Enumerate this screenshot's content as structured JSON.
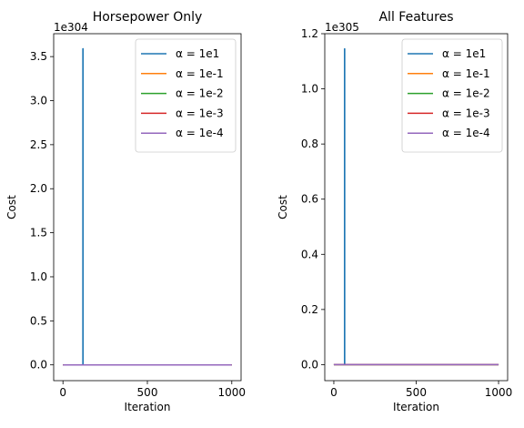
{
  "chart_data": [
    {
      "type": "line",
      "title": "Horsepower Only",
      "xlabel": "Iteration",
      "ylabel": "Cost",
      "offset_text": "1e304",
      "xlim": [
        -55,
        1055
      ],
      "ylim": [
        -0.179,
        3.76
      ],
      "xticks": [
        0,
        500,
        1000
      ],
      "yticks": [
        0.0,
        0.5,
        1.0,
        1.5,
        2.0,
        2.5,
        3.0,
        3.5
      ],
      "ytick_labels": [
        "0.0",
        "0.5",
        "1.0",
        "1.5",
        "2.0",
        "2.5",
        "3.0",
        "3.5"
      ],
      "legend_position": "top-right",
      "series": [
        {
          "name": "α = 1e1",
          "color": "#1f77b4",
          "x": [
            0,
            118,
            118,
            119,
            119,
            1000
          ],
          "y": [
            0,
            0,
            3.59,
            3.59,
            0,
            0
          ]
        },
        {
          "name": "α = 1e-1",
          "color": "#ff7f0e",
          "x": [
            0,
            1000
          ],
          "y": [
            0,
            0
          ]
        },
        {
          "name": "α = 1e-2",
          "color": "#2ca02c",
          "x": [
            0,
            1000
          ],
          "y": [
            0,
            0
          ]
        },
        {
          "name": "α = 1e-3",
          "color": "#d62728",
          "x": [
            0,
            1000
          ],
          "y": [
            0,
            0
          ]
        },
        {
          "name": "α = 1e-4",
          "color": "#9467bd",
          "x": [
            0,
            1000
          ],
          "y": [
            0,
            0
          ]
        }
      ]
    },
    {
      "type": "line",
      "title": "All Features",
      "xlabel": "Iteration",
      "ylabel": "Cost",
      "offset_text": "1e305",
      "xlim": [
        -55,
        1055
      ],
      "ylim": [
        -0.058,
        1.2
      ],
      "xticks": [
        0,
        500,
        1000
      ],
      "yticks": [
        0.0,
        0.2,
        0.4,
        0.6,
        0.8,
        1.0,
        1.2
      ],
      "ytick_labels": [
        "0.0",
        "0.2",
        "0.4",
        "0.6",
        "0.8",
        "1.0",
        "1.2"
      ],
      "legend_position": "top-right",
      "series": [
        {
          "name": "α = 1e1",
          "color": "#1f77b4",
          "x": [
            0,
            65,
            65,
            66,
            66,
            1000
          ],
          "y": [
            0,
            0,
            1.145,
            1.145,
            0,
            0
          ]
        },
        {
          "name": "α = 1e-1",
          "color": "#ff7f0e",
          "x": [
            0,
            1000
          ],
          "y": [
            0,
            0
          ]
        },
        {
          "name": "α = 1e-2",
          "color": "#2ca02c",
          "x": [
            0,
            1000
          ],
          "y": [
            0,
            0
          ]
        },
        {
          "name": "α = 1e-3",
          "color": "#d62728",
          "x": [
            0,
            1000
          ],
          "y": [
            0,
            0
          ]
        },
        {
          "name": "α = 1e-4",
          "color": "#9467bd",
          "x": [
            0,
            1000
          ],
          "y": [
            0,
            0
          ]
        }
      ]
    }
  ]
}
